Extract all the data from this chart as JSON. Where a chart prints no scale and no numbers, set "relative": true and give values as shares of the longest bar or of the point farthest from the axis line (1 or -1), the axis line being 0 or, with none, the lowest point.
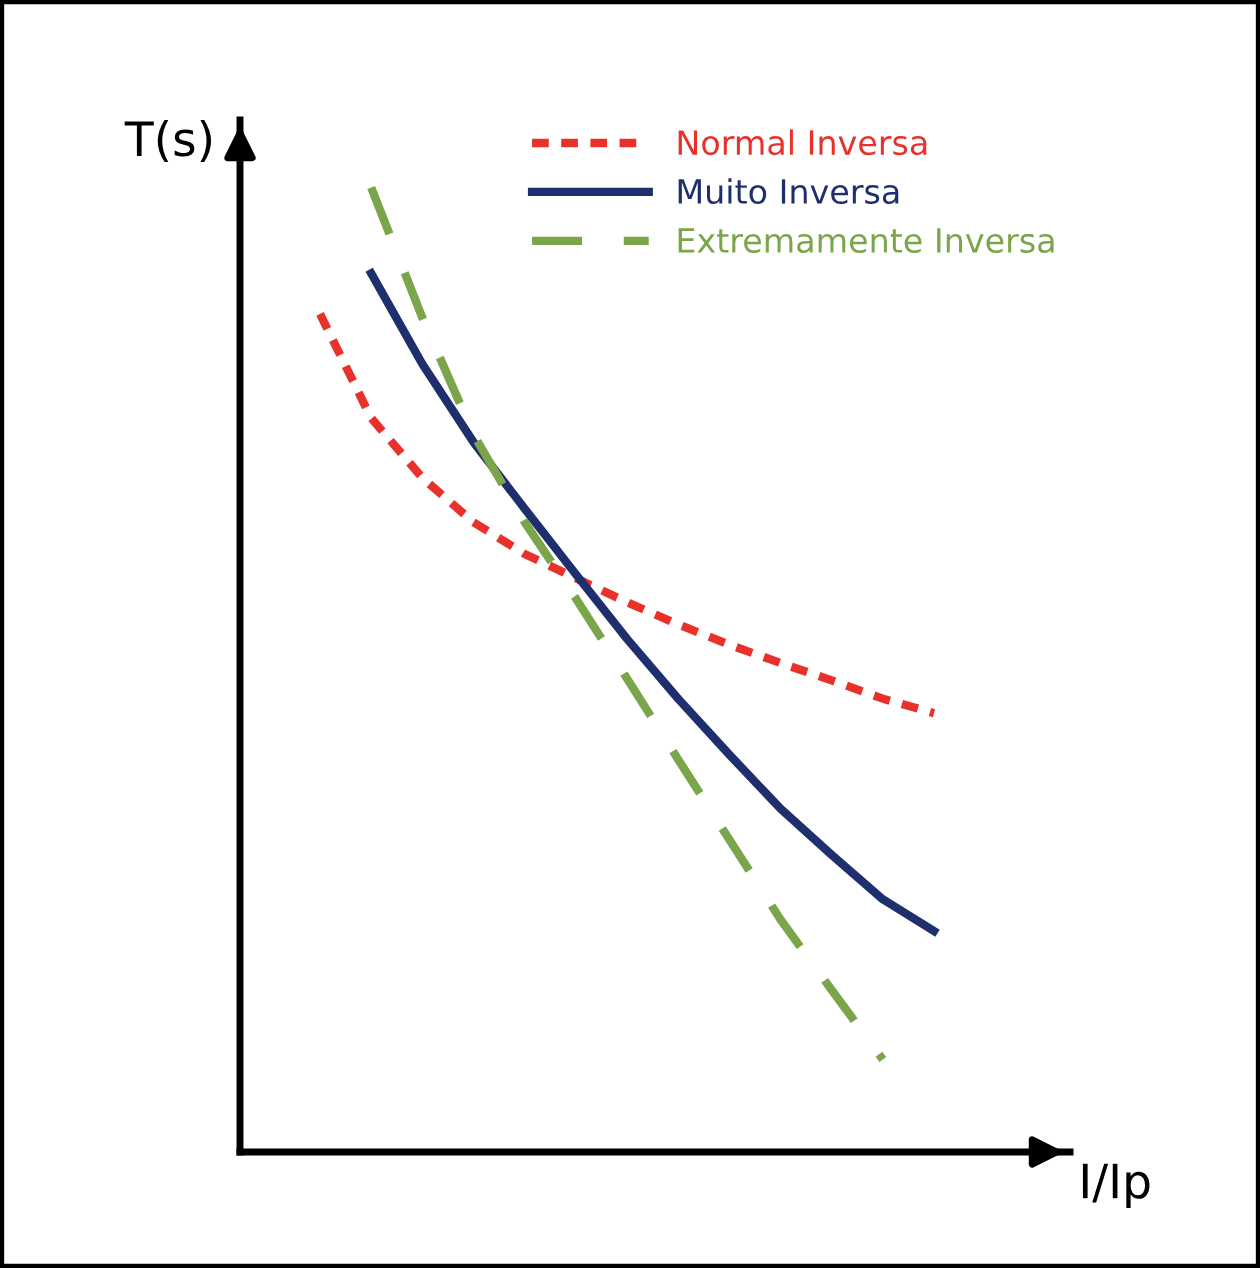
{
  "chart_data": {
    "type": "line",
    "relative": true,
    "xlabel": "I/Ip",
    "ylabel": "T(s)",
    "legend": "top right",
    "grid": false,
    "categories": [
      null,
      null,
      null,
      null,
      null,
      null,
      null,
      null,
      null,
      null,
      null,
      null,
      null
    ],
    "series": [
      {
        "name": "Normal Inversa",
        "color": "#e8312a",
        "line_style": "dotted",
        "values": [
          0.869,
          0.761,
          0.699,
          0.653,
          0.62,
          0.595,
          0.57,
          0.547,
          0.526,
          0.507,
          0.489,
          0.47,
          0.455
        ]
      },
      {
        "name": "Muito Inversa",
        "color": "#1f2f6e",
        "line_style": "solid",
        "values": [
          null,
          0.911,
          0.817,
          0.736,
          0.667,
          0.599,
          0.532,
          0.47,
          0.412,
          0.356,
          0.308,
          0.262,
          0.229
        ]
      },
      {
        "name": "Extremamente Inversa",
        "color": "#7aa54a",
        "line_style": "dashed",
        "values": [
          null,
          1,
          0.865,
          0.744,
          0.653,
          0.574,
          0.491,
          0.407,
          0.324,
          0.241,
          0.168,
          0.096,
          null
        ]
      }
    ]
  }
}
